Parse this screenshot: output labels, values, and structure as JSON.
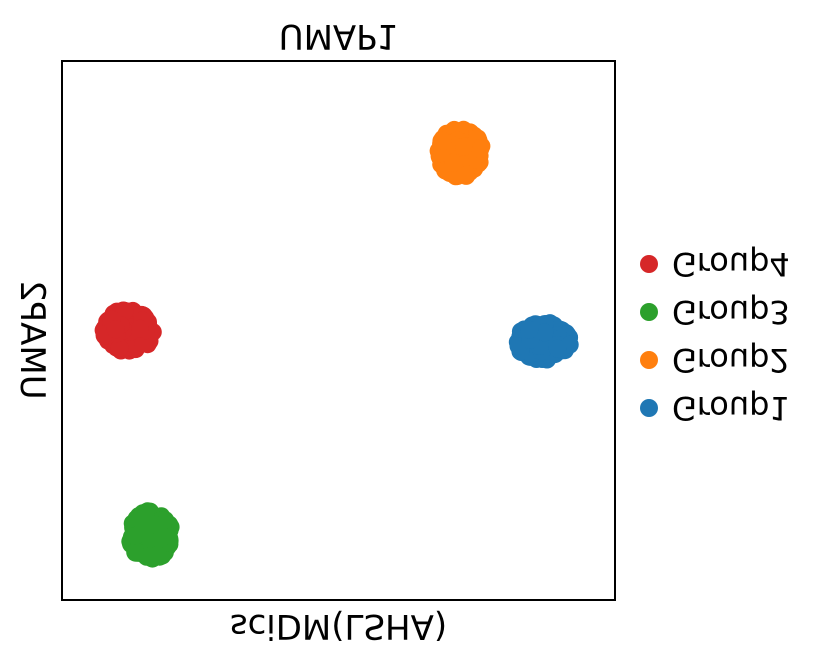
{
  "chart_data": {
    "type": "scatter",
    "title": "UMAP1",
    "xlabel": "sciDM(LSHA)",
    "ylabel": "UMAP2",
    "grid": false,
    "ticks": false,
    "legend_position": "right",
    "legend": [
      {
        "name": "Group4",
        "color": "#d62728"
      },
      {
        "name": "Group3",
        "color": "#2ca02c"
      },
      {
        "name": "Group2",
        "color": "#ff7f0e"
      },
      {
        "name": "Group1",
        "color": "#1f77b4"
      }
    ],
    "clusters": [
      {
        "name": "Group2",
        "color": "#ff7f0e",
        "center": [
          0.72,
          0.83
        ],
        "spread": [
          0.08,
          0.09
        ]
      },
      {
        "name": "Group4",
        "color": "#d62728",
        "center": [
          0.12,
          0.5
        ],
        "spread": [
          0.09,
          0.08
        ]
      },
      {
        "name": "Group1",
        "color": "#1f77b4",
        "center": [
          0.87,
          0.48
        ],
        "spread": [
          0.1,
          0.07
        ]
      },
      {
        "name": "Group3",
        "color": "#2ca02c",
        "center": [
          0.16,
          0.12
        ],
        "spread": [
          0.08,
          0.09
        ]
      }
    ]
  }
}
